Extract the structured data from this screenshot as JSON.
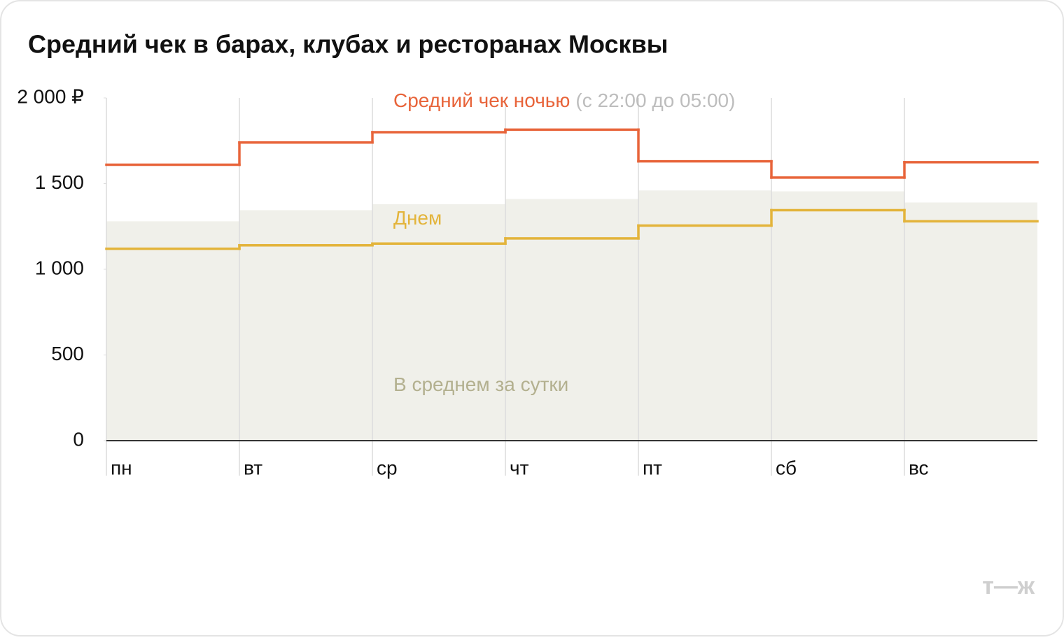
{
  "chart_data": {
    "type": "step",
    "title": "Средний чек в барах, клубах и ресторанах Москвы",
    "categories": [
      "пн",
      "вт",
      "ср",
      "чт",
      "пт",
      "сб",
      "вс"
    ],
    "series": [
      {
        "name": "В среднем за сутки",
        "type": "area",
        "color": "#f0f0ea",
        "label_color": "#b3b08f",
        "values": [
          1280,
          1345,
          1380,
          1410,
          1460,
          1455,
          1390
        ]
      },
      {
        "name": "Днем",
        "type": "step",
        "color": "#e3b43b",
        "label_color": "#e3b43b",
        "values": [
          1120,
          1140,
          1150,
          1180,
          1255,
          1345,
          1280
        ]
      },
      {
        "name": "Средний чек ночью",
        "annotation": "(с 22:00 до 05:00)",
        "type": "step",
        "color": "#e8643a",
        "label_color": "#e8643a",
        "values": [
          1610,
          1740,
          1800,
          1815,
          1630,
          1535,
          1625
        ]
      }
    ],
    "ylim": [
      0,
      2000
    ],
    "yticks": [
      0,
      500,
      {
        "value": 1000,
        "label": "1 000"
      },
      {
        "value": 1500,
        "label": "1 500"
      },
      {
        "value": 2000,
        "label": "2 000 ₽"
      }
    ],
    "logo": "т—ж"
  }
}
